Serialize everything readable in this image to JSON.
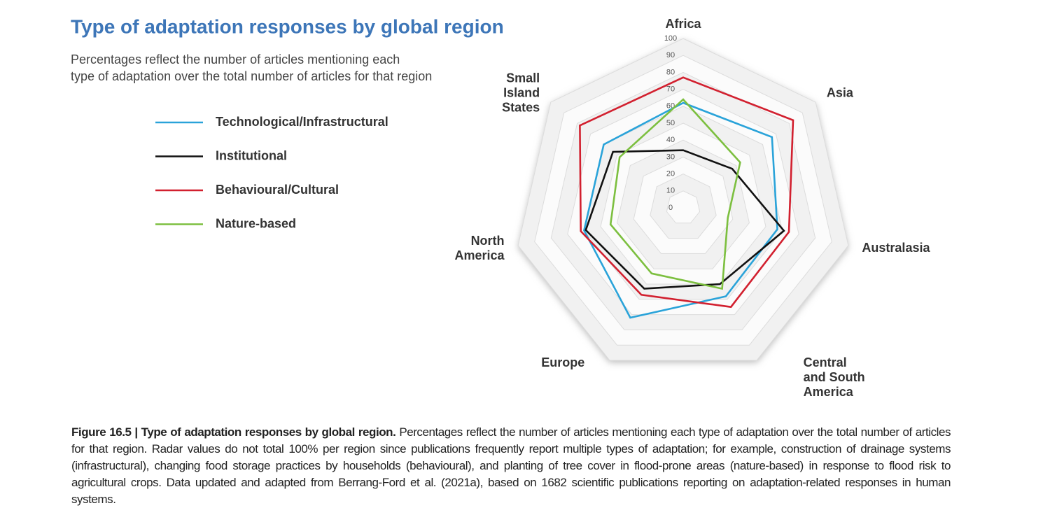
{
  "chart_data": {
    "type": "radar",
    "title": "Type of adaptation responses by global region",
    "subtitle": "Percentages reflect the number of articles mentioning each\ntype of adaptation over the total number of articles for that region",
    "categories": [
      "Africa",
      "Asia",
      "Australasia",
      "Central\nand South\nAmerica",
      "Europe",
      "North\nAmerica",
      "Small\nIsland\nStates"
    ],
    "ylim": [
      0,
      100
    ],
    "yticks": [
      0,
      10,
      20,
      30,
      40,
      50,
      60,
      70,
      80,
      90,
      100
    ],
    "series": [
      {
        "name": "Technological/Infrastructural",
        "color": "#2aa3d9",
        "values": [
          62,
          67,
          57,
          58,
          72,
          60,
          60
        ]
      },
      {
        "name": "Institutional",
        "color": "#111111",
        "values": [
          34,
          37,
          61,
          50,
          53,
          59,
          53
        ]
      },
      {
        "name": "Behavioural/Cultural",
        "color": "#d2202f",
        "values": [
          77,
          83,
          64,
          65,
          57,
          62,
          78
        ]
      },
      {
        "name": "Nature-based",
        "color": "#7cbf3f",
        "values": [
          64,
          43,
          27,
          53,
          43,
          44,
          48
        ]
      }
    ],
    "caption": {
      "label": "Figure 16.5 |  Type of adaptation responses by global region.",
      "text": "Percentages reflect the number of articles mentioning each type of adaptation over the total number of articles for that region. Radar values do not total 100% per region since publications frequently report multiple types of adaptation; for example, construction of drainage systems (infrastructural), changing food storage practices by households (behavioural), and planting of tree cover in flood-prone areas (nature-based) in response to flood risk to agricultural crops. Data updated and adapted from Berrang-Ford et al. (2021a), based on 1682 scientific publications reporting on adaptation-related responses in human systems."
    }
  }
}
